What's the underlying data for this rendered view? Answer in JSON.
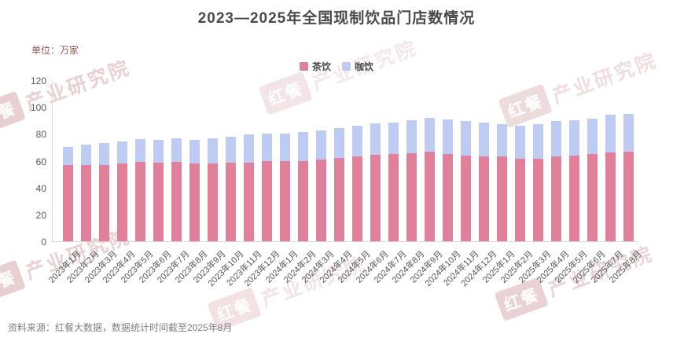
{
  "header": {
    "title": "2023—2025年全国现制饮品门店数情况"
  },
  "unit_label": "单位：万家",
  "legend": [
    {
      "label": "茶饮",
      "color": "#e0809b"
    },
    {
      "label": "咖饮",
      "color": "#becbf3"
    }
  ],
  "watermark": {
    "brand": "红餐",
    "name": "产业研究院"
  },
  "footer": {
    "source": "资料来源：红餐大数据，数据统计时间截至2025年8月"
  },
  "chart_data": {
    "type": "bar",
    "stacked": true,
    "title": "2023—2025年全国现制饮品门店数情况",
    "unit": "万家",
    "xlabel": "",
    "ylabel": "单位：万家",
    "ylim": [
      0,
      120
    ],
    "yticks": [
      0,
      20,
      40,
      60,
      80,
      100,
      120
    ],
    "grid": false,
    "legend_position": "top-center",
    "categories": [
      "2023年1月",
      "2023年2月",
      "2023年3月",
      "2023年4月",
      "2023年5月",
      "2023年6月",
      "2023年7月",
      "2023年8月",
      "2023年9月",
      "2023年10月",
      "2023年11月",
      "2023年12月",
      "2024年1月",
      "2024年2月",
      "2024年3月",
      "2024年4月",
      "2024年5月",
      "2024年6月",
      "2024年7月",
      "2024年8月",
      "2024年9月",
      "2024年10月",
      "2024年11月",
      "2024年12月",
      "2025年1月",
      "2025年2月",
      "2025年3月",
      "2025年4月",
      "2025年5月",
      "2025年6月",
      "2025年7月",
      "2025年8月"
    ],
    "series": [
      {
        "name": "茶饮",
        "color": "#e0809b",
        "values": [
          56.5,
          57,
          57,
          58,
          59,
          58.5,
          59,
          58,
          58,
          58.5,
          58.5,
          60,
          59.5,
          60,
          61,
          62,
          63.5,
          64.5,
          65,
          65.5,
          66.5,
          65,
          64,
          63,
          63,
          61.5,
          61.5,
          63.5,
          64,
          65,
          66,
          66.5
        ]
      },
      {
        "name": "咖饮",
        "color": "#becbf3",
        "values": [
          14,
          15,
          16,
          16.5,
          17,
          17,
          17.5,
          17.5,
          18.5,
          19.5,
          21,
          20,
          20.5,
          21.5,
          21.5,
          22.5,
          22.5,
          23.5,
          23.5,
          24.5,
          25.5,
          25.5,
          25.5,
          25.5,
          24,
          24.5,
          26,
          26,
          26,
          26.5,
          28,
          28.5
        ]
      }
    ]
  }
}
